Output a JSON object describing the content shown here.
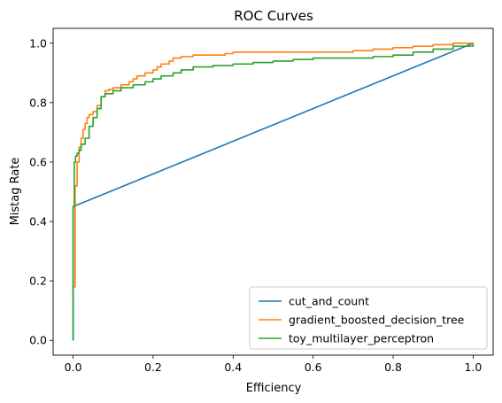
{
  "chart_data": {
    "type": "line",
    "title": "ROC Curves",
    "xlabel": "Efficiency",
    "ylabel": "Mistag Rate",
    "xlim": [
      -0.05,
      1.05
    ],
    "ylim": [
      -0.05,
      1.05
    ],
    "xticks": [
      0.0,
      0.2,
      0.4,
      0.6,
      0.8,
      1.0
    ],
    "yticks": [
      0.0,
      0.2,
      0.4,
      0.6,
      0.8,
      1.0
    ],
    "xtick_labels": [
      "0.0",
      "0.2",
      "0.4",
      "0.6",
      "0.8",
      "1.0"
    ],
    "ytick_labels": [
      "0.0",
      "0.2",
      "0.4",
      "0.6",
      "0.8",
      "1.0"
    ],
    "grid": false,
    "legend_position": "bottom-right",
    "series": [
      {
        "name": "cut_and_count",
        "color": "#1f77b4",
        "x": [
          0.0,
          0.0,
          1.0
        ],
        "y": [
          0.0,
          0.45,
          1.0
        ]
      },
      {
        "name": "gradient_boosted_decision_tree",
        "color": "#ff7f0e",
        "step": true,
        "x": [
          0.0,
          0.0,
          0.005,
          0.005,
          0.01,
          0.01,
          0.015,
          0.02,
          0.025,
          0.03,
          0.035,
          0.04,
          0.05,
          0.06,
          0.07,
          0.08,
          0.09,
          0.1,
          0.12,
          0.14,
          0.15,
          0.16,
          0.18,
          0.2,
          0.21,
          0.22,
          0.24,
          0.25,
          0.27,
          0.3,
          0.35,
          0.38,
          0.4,
          0.42,
          0.45,
          0.5,
          0.6,
          0.65,
          0.7,
          0.75,
          0.8,
          0.85,
          0.9,
          0.95,
          1.0
        ],
        "y": [
          0.15,
          0.18,
          0.18,
          0.52,
          0.52,
          0.6,
          0.65,
          0.68,
          0.71,
          0.73,
          0.75,
          0.76,
          0.77,
          0.79,
          0.82,
          0.84,
          0.845,
          0.85,
          0.86,
          0.87,
          0.88,
          0.89,
          0.9,
          0.91,
          0.92,
          0.93,
          0.94,
          0.95,
          0.955,
          0.96,
          0.96,
          0.965,
          0.97,
          0.97,
          0.97,
          0.97,
          0.97,
          0.97,
          0.975,
          0.98,
          0.985,
          0.99,
          0.995,
          1.0,
          1.0
        ]
      },
      {
        "name": "toy_multilayer_perceptron",
        "color": "#2ca02c",
        "step": true,
        "x": [
          0.0,
          0.0,
          0.003,
          0.003,
          0.006,
          0.01,
          0.015,
          0.02,
          0.03,
          0.04,
          0.05,
          0.06,
          0.07,
          0.08,
          0.1,
          0.12,
          0.15,
          0.18,
          0.2,
          0.22,
          0.25,
          0.27,
          0.3,
          0.35,
          0.4,
          0.45,
          0.47,
          0.5,
          0.55,
          0.6,
          0.65,
          0.7,
          0.75,
          0.8,
          0.85,
          0.9,
          0.95,
          1.0
        ],
        "y": [
          0.0,
          0.45,
          0.45,
          0.6,
          0.62,
          0.63,
          0.64,
          0.66,
          0.68,
          0.72,
          0.75,
          0.78,
          0.82,
          0.83,
          0.84,
          0.85,
          0.86,
          0.87,
          0.88,
          0.89,
          0.9,
          0.91,
          0.92,
          0.925,
          0.93,
          0.935,
          0.935,
          0.94,
          0.945,
          0.95,
          0.95,
          0.95,
          0.955,
          0.96,
          0.97,
          0.98,
          0.99,
          1.0
        ]
      }
    ]
  }
}
